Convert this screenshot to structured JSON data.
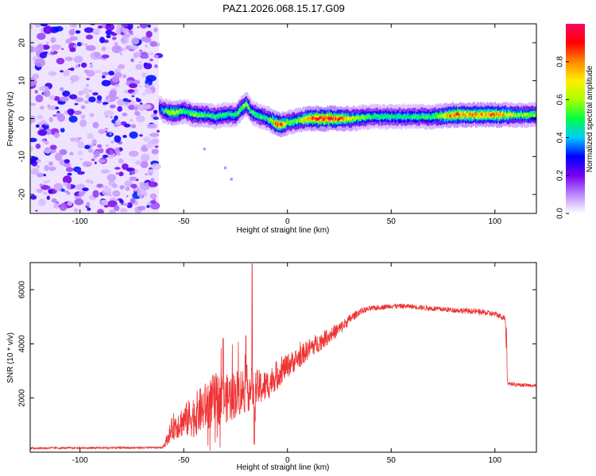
{
  "figure": {
    "title": "PAZ1.2026.068.15.17.G09"
  },
  "chart_data": [
    {
      "type": "heatmap",
      "name": "spectrogram",
      "title": "PAZ1.2026.068.15.17.G09",
      "xlabel": "Height of straight line (km)",
      "ylabel": "Frequency (Hz)",
      "xlim": [
        -124,
        120
      ],
      "ylim": [
        -25,
        25
      ],
      "xticks": [
        -100,
        -50,
        0,
        50,
        100
      ],
      "yticks": [
        -20,
        -10,
        0,
        10,
        20
      ],
      "noise_region_x": [
        -124,
        -62
      ],
      "ridge": {
        "x": [
          -62,
          -60,
          -55,
          -50,
          -45,
          -40,
          -35,
          -30,
          -25,
          -22,
          -20,
          -18,
          -15,
          -10,
          -5,
          -2,
          0,
          5,
          10,
          15,
          20,
          30,
          40,
          50,
          60,
          70,
          80,
          90,
          100,
          110,
          120
        ],
        "freq": [
          3,
          2,
          1.5,
          2,
          1,
          1,
          0.5,
          1,
          1,
          3,
          4,
          2,
          1,
          0,
          -1.5,
          -1.5,
          -1,
          -0.5,
          0,
          0,
          0,
          0,
          0.5,
          0.5,
          0.5,
          0.5,
          1,
          1,
          1,
          1,
          1
        ],
        "amplitude": [
          0.3,
          0.5,
          0.7,
          0.5,
          0.6,
          0.5,
          0.5,
          0.5,
          0.5,
          0.6,
          0.6,
          0.5,
          0.5,
          0.5,
          0.9,
          0.8,
          0.6,
          0.6,
          0.8,
          0.95,
          0.95,
          0.7,
          0.5,
          0.5,
          0.5,
          0.55,
          0.85,
          0.8,
          0.85,
          0.6,
          0.6
        ]
      },
      "scatter_tail": [
        {
          "x": -40,
          "freq": -8
        },
        {
          "x": -30,
          "freq": -13
        },
        {
          "x": -27,
          "freq": -16
        }
      ],
      "colorbar": {
        "label": "Normalized spectral amplitude",
        "range": [
          0,
          1
        ],
        "ticks": [
          0.0,
          0.2,
          0.4,
          0.6,
          0.8
        ],
        "tick_labels": [
          "0.0",
          "0.2",
          "0.4",
          "0.6",
          "0.8"
        ],
        "colors": [
          "#ffffff",
          "#bb88ff",
          "#7700ee",
          "#0000ff",
          "#00ccff",
          "#00ff44",
          "#aaff00",
          "#ffee00",
          "#ff8800",
          "#ff0000",
          "#ff0066"
        ]
      }
    },
    {
      "type": "line",
      "name": "snr",
      "xlabel": "Height of straight line (km)",
      "ylabel": "SNR (10 * v/v)",
      "xlim": [
        -124,
        120
      ],
      "ylim": [
        0,
        7000
      ],
      "xticks": [
        -100,
        -50,
        0,
        50,
        100
      ],
      "yticks": [
        2000,
        4000,
        6000
      ],
      "color": "#ee3333",
      "envelope": {
        "x": [
          -124,
          -60,
          -55,
          -50,
          -45,
          -40,
          -35,
          -30,
          -25,
          -20,
          -15,
          -10,
          -5,
          0,
          5,
          10,
          15,
          20,
          25,
          30,
          35,
          40,
          50,
          60,
          70,
          80,
          90,
          100,
          105,
          106,
          110,
          120
        ],
        "mean": [
          150,
          170,
          950,
          1150,
          1350,
          1650,
          1950,
          1950,
          2150,
          2350,
          2350,
          2450,
          2850,
          3200,
          3450,
          3800,
          4050,
          4300,
          4550,
          4900,
          5200,
          5300,
          5400,
          5380,
          5300,
          5250,
          5200,
          5100,
          4950,
          2550,
          2500,
          2450
        ],
        "noise": [
          35,
          35,
          500,
          600,
          800,
          900,
          1000,
          900,
          900,
          900,
          700,
          600,
          500,
          450,
          400,
          380,
          350,
          300,
          250,
          180,
          120,
          100,
          90,
          90,
          100,
          100,
          110,
          110,
          100,
          80,
          70,
          60
        ]
      },
      "spikes": [
        {
          "x": -17,
          "value": 6950
        },
        {
          "x": -16,
          "value": 300
        },
        {
          "x": -31,
          "value": 4200
        },
        {
          "x": -20,
          "value": 4300
        }
      ]
    }
  ]
}
